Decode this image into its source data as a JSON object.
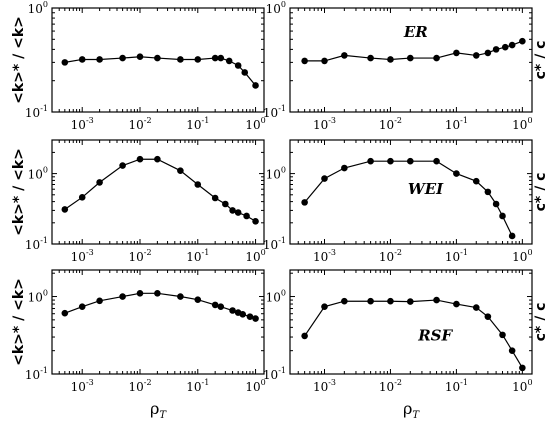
{
  "chart_data": [
    {
      "type": "line",
      "panel": "top-left",
      "ylabel": "<k>* / <k>",
      "xlabel": "",
      "annotation": "",
      "xscale": "log",
      "yscale": "log",
      "xlim": [
        0.0003,
        1.4
      ],
      "ylim": [
        0.1,
        1
      ],
      "series": [
        {
          "x": [
            0.0005,
            0.001,
            0.002,
            0.005,
            0.01,
            0.02,
            0.05,
            0.1,
            0.2,
            0.25,
            0.35,
            0.5,
            0.65,
            1.0
          ],
          "y": [
            0.3,
            0.32,
            0.32,
            0.33,
            0.34,
            0.33,
            0.32,
            0.32,
            0.33,
            0.33,
            0.31,
            0.28,
            0.24,
            0.18
          ]
        }
      ]
    },
    {
      "type": "line",
      "panel": "top-right",
      "ylabel": "c* / c",
      "xlabel": "",
      "annotation": "ER",
      "xscale": "log",
      "yscale": "log",
      "xlim": [
        0.0003,
        1.4
      ],
      "ylim": [
        0.1,
        1
      ],
      "series": [
        {
          "x": [
            0.0005,
            0.001,
            0.002,
            0.005,
            0.01,
            0.02,
            0.05,
            0.1,
            0.2,
            0.3,
            0.4,
            0.55,
            0.7,
            1.0
          ],
          "y": [
            0.31,
            0.31,
            0.35,
            0.33,
            0.32,
            0.33,
            0.33,
            0.37,
            0.35,
            0.37,
            0.4,
            0.42,
            0.44,
            0.48
          ]
        }
      ]
    },
    {
      "type": "line",
      "panel": "middle-left",
      "ylabel": "<k>* / <k>",
      "xlabel": "",
      "annotation": "",
      "xscale": "log",
      "yscale": "log",
      "xlim": [
        0.0003,
        1.4
      ],
      "ylim": [
        0.1,
        3
      ],
      "series": [
        {
          "x": [
            0.0005,
            0.001,
            0.002,
            0.005,
            0.01,
            0.02,
            0.05,
            0.1,
            0.2,
            0.3,
            0.4,
            0.5,
            0.7,
            1.0
          ],
          "y": [
            0.31,
            0.46,
            0.75,
            1.3,
            1.6,
            1.6,
            1.1,
            0.7,
            0.45,
            0.37,
            0.3,
            0.28,
            0.25,
            0.21
          ]
        }
      ]
    },
    {
      "type": "line",
      "panel": "middle-right",
      "ylabel": "c* / c",
      "xlabel": "",
      "annotation": "WEI",
      "xscale": "log",
      "yscale": "log",
      "xlim": [
        0.0003,
        1.4
      ],
      "ylim": [
        0.1,
        3
      ],
      "series": [
        {
          "x": [
            0.0005,
            0.001,
            0.002,
            0.005,
            0.01,
            0.02,
            0.05,
            0.1,
            0.2,
            0.3,
            0.4,
            0.5,
            0.7
          ],
          "y": [
            0.39,
            0.85,
            1.2,
            1.5,
            1.5,
            1.5,
            1.5,
            1.0,
            0.78,
            0.55,
            0.37,
            0.25,
            0.13
          ]
        }
      ]
    },
    {
      "type": "line",
      "panel": "bottom-left",
      "ylabel": "<k>* / <k>",
      "xlabel": "ρT",
      "annotation": "",
      "xscale": "log",
      "yscale": "log",
      "xlim": [
        0.0003,
        1.4
      ],
      "ylim": [
        0.1,
        2.2
      ],
      "series": [
        {
          "x": [
            0.0005,
            0.001,
            0.002,
            0.005,
            0.01,
            0.02,
            0.05,
            0.1,
            0.2,
            0.25,
            0.4,
            0.5,
            0.6,
            0.8,
            1.0
          ],
          "y": [
            0.61,
            0.74,
            0.88,
            1.0,
            1.1,
            1.1,
            1.0,
            0.91,
            0.78,
            0.74,
            0.66,
            0.62,
            0.59,
            0.55,
            0.52
          ]
        }
      ]
    },
    {
      "type": "line",
      "panel": "bottom-right",
      "ylabel": "c* / c",
      "xlabel": "ρT",
      "annotation": "RSF",
      "xscale": "log",
      "yscale": "log",
      "xlim": [
        0.0003,
        1.4
      ],
      "ylim": [
        0.1,
        2.2
      ],
      "series": [
        {
          "x": [
            0.0005,
            0.001,
            0.002,
            0.005,
            0.01,
            0.02,
            0.05,
            0.1,
            0.2,
            0.3,
            0.5,
            0.7,
            1.0
          ],
          "y": [
            0.31,
            0.74,
            0.87,
            0.87,
            0.87,
            0.86,
            0.9,
            0.8,
            0.72,
            0.55,
            0.32,
            0.2,
            0.12
          ]
        }
      ]
    }
  ]
}
